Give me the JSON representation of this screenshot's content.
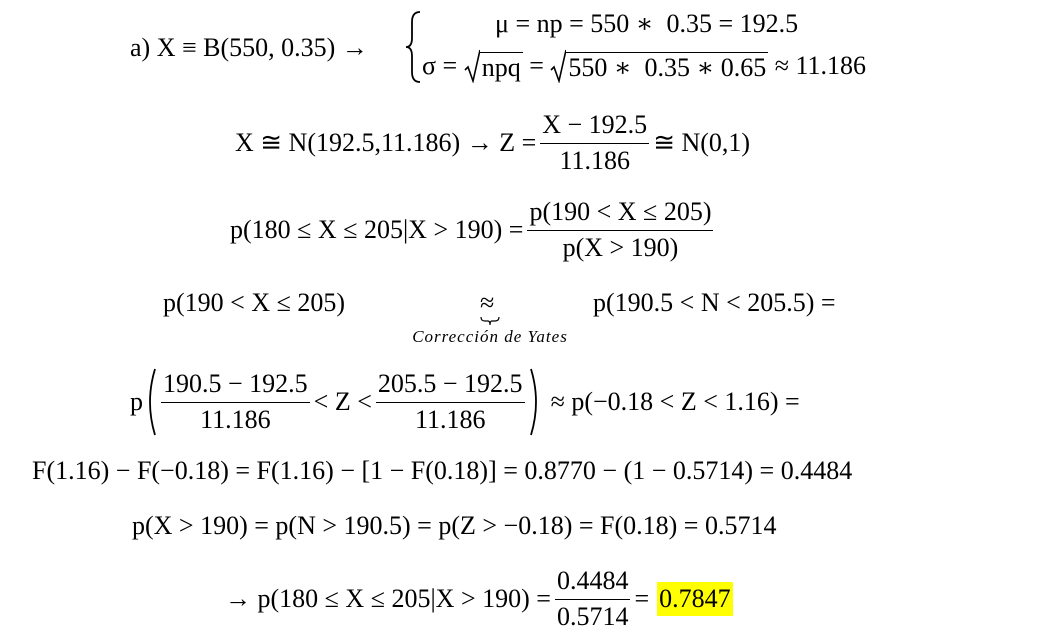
{
  "eq1": {
    "lhs": "a) X ≡ B(550, 0.35) →",
    "mu": "μ = np = 550 ∗  0.35 = 192.5",
    "sigma_lhs": "σ = ",
    "sigma_root1": "npq",
    "sigma_mid": " = ",
    "sigma_root2": "550 ∗  0.35 ∗ 0.65",
    "sigma_rhs": " ≈ 11.186"
  },
  "eq2": {
    "lhs": "X ≅ N(192.5,11.186) → Z =",
    "num": "X − 192.5",
    "den": "11.186",
    "rhs": "≅ N(0,1)"
  },
  "eq3": {
    "lhs": "p(180 ≤ X ≤ 205|X > 190) =",
    "num": "p(190 < X ≤ 205)",
    "den": "p(X > 190)"
  },
  "eq4": {
    "lhs": "p(190 < X ≤ 205)",
    "symbol": "≈",
    "note": "Corrección de Yates",
    "rhs": "p(190.5 < N < 205.5) ="
  },
  "eq5": {
    "p": "p",
    "num1": "190.5 − 192.5",
    "den1": "11.186",
    "mid": "< Z <",
    "num2": "205.5 − 192.5",
    "den2": "11.186",
    "rhs": "≈ p(−0.18 < Z < 1.16) ="
  },
  "eq6": "F(1.16) − F(−0.18) = F(1.16) − [1 − F(0.18)] = 0.8770 − (1 − 0.5714) = 0.4484",
  "eq7": "p(X > 190) = p(N > 190.5) = p(Z > −0.18) = F(0.18) = 0.5714",
  "eq8": {
    "lhs": "→ p(180 ≤ X ≤ 205|X > 190) =",
    "num": "0.4484",
    "den": "0.5714",
    "eq": "=",
    "result": "0.7847"
  }
}
